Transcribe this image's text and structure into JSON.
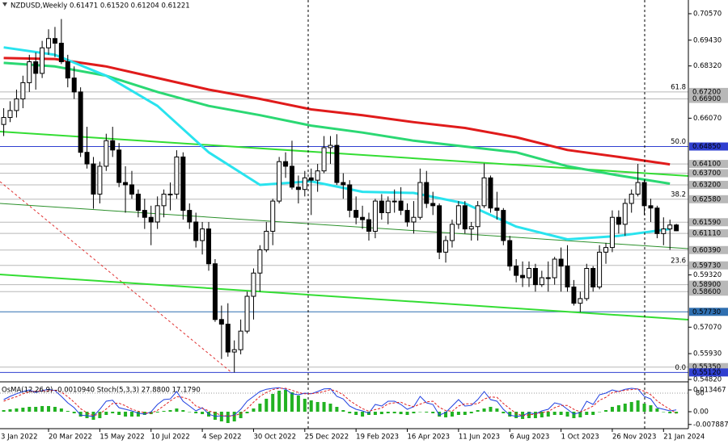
{
  "chart_data": {
    "type": "candlestick",
    "title": "NZDUSD,Weekly  0.61471 0.61520 0.61204 0.61221",
    "xlim": [
      3.42,
      110.75
    ],
    "ylim": [
      0.5475,
      0.7116
    ],
    "xticks": [
      {
        "value": 0,
        "label": "3 Jan 2022"
      },
      {
        "value": 11,
        "label": "20 Mar 2022"
      },
      {
        "value": 19,
        "label": "15 May 2022"
      },
      {
        "value": 27,
        "label": "10 Jul 2022"
      },
      {
        "value": 35,
        "label": "4 Sep 2022"
      },
      {
        "value": 43,
        "label": "30 Oct 2022"
      },
      {
        "value": 51,
        "label": "25 Dec 2022"
      },
      {
        "value": 59,
        "label": "19 Feb 2023"
      },
      {
        "value": 67,
        "label": "16 Apr 2023"
      },
      {
        "value": 75,
        "label": "11 Jun 2023"
      },
      {
        "value": 83,
        "label": "6 Aug 2023"
      },
      {
        "value": 91,
        "label": "1 Oct 2023"
      },
      {
        "value": 99,
        "label": "26 Nov 2023"
      },
      {
        "value": 107,
        "label": "21 Jan 2024"
      }
    ],
    "yticks": [
      {
        "value": 0.7057,
        "label": "0.70570"
      },
      {
        "value": 0.6943,
        "label": "0.69430"
      },
      {
        "value": 0.6832,
        "label": "0.68320"
      },
      {
        "value": 0.6607,
        "label": "0.66070"
      },
      {
        "value": 0.5932,
        "label": "0.59320"
      },
      {
        "value": 0.5707,
        "label": "0.57070"
      },
      {
        "value": 0.5593,
        "label": "0.55930"
      },
      {
        "value": 0.5482,
        "label": "0.54820"
      }
    ],
    "levels": [
      {
        "value": 0.672,
        "label": "0.67200",
        "color": "#b8b8b8"
      },
      {
        "value": 0.669,
        "label": "0.66900",
        "color": "#b8b8b8"
      },
      {
        "value": 0.6485,
        "label": "0.64850",
        "color": "#2f3fd0"
      },
      {
        "value": 0.641,
        "label": "0.64100",
        "color": "#b8b8b8"
      },
      {
        "value": 0.637,
        "label": "0.63700",
        "color": "#b8b8b8"
      },
      {
        "value": 0.632,
        "label": "0.63200",
        "color": "#b8b8b8"
      },
      {
        "value": 0.6258,
        "label": "0.62580",
        "color": "#b8b8b8"
      },
      {
        "value": 0.6159,
        "label": "0.61590",
        "color": "#b8b8b8"
      },
      {
        "value": 0.6111,
        "label": "0.61110",
        "color": "#b8b8b8"
      },
      {
        "value": 0.6039,
        "label": "0.60390",
        "color": "#b8b8b8"
      },
      {
        "value": 0.5973,
        "label": "0.59730",
        "color": "#b8b8b8"
      },
      {
        "value": 0.589,
        "label": "0.58900",
        "color": "#b8b8b8"
      },
      {
        "value": 0.586,
        "label": "0.58600",
        "color": "#b8b8b8"
      },
      {
        "value": 0.5773,
        "label": "0.57730",
        "color": "#2f6fb0"
      },
      {
        "value": 0.5535,
        "label": "0.55350",
        "color": "#b8b8b8"
      },
      {
        "value": 0.5512,
        "label": "0.55120",
        "color": "#2f3fd0"
      }
    ],
    "fib_labels": [
      {
        "text": "61.8",
        "price": 0.672
      },
      {
        "text": "50.0",
        "price": 0.6485
      },
      {
        "text": "38.2",
        "price": 0.6258
      },
      {
        "text": "23.6",
        "price": 0.5973
      },
      {
        "text": "0.0",
        "price": 0.5512
      }
    ],
    "x": [
      4,
      5,
      6,
      7,
      8,
      9,
      10,
      11,
      12,
      13,
      14,
      15,
      16,
      17,
      18,
      19,
      20,
      21,
      22,
      23,
      24,
      25,
      26,
      27,
      28,
      29,
      30,
      31,
      32,
      33,
      34,
      35,
      36,
      37,
      38,
      39,
      40,
      41,
      42,
      43,
      44,
      45,
      46,
      47,
      48,
      49,
      50,
      51,
      52,
      53,
      54,
      55,
      56,
      57,
      58,
      59,
      60,
      61,
      62,
      63,
      64,
      65,
      66,
      67,
      68,
      69,
      70,
      71,
      72,
      73,
      74,
      75,
      76,
      77,
      78,
      79,
      80,
      81,
      82,
      83,
      84,
      85,
      86,
      87,
      88,
      89,
      90,
      91,
      92,
      93,
      94,
      95,
      96,
      97,
      98,
      99,
      100,
      101,
      102,
      103,
      104,
      105,
      106,
      107,
      108,
      109
    ],
    "open": [
      0.658,
      0.661,
      0.664,
      0.669,
      0.676,
      0.685,
      0.68,
      0.691,
      0.695,
      0.693,
      0.685,
      0.678,
      0.672,
      0.646,
      0.641,
      0.628,
      0.64,
      0.651,
      0.647,
      0.633,
      0.632,
      0.628,
      0.621,
      0.618,
      0.616,
      0.623,
      0.628,
      0.628,
      0.644,
      0.621,
      0.616,
      0.608,
      0.613,
      0.598,
      0.574,
      0.572,
      0.56,
      0.561,
      0.569,
      0.584,
      0.594,
      0.604,
      0.612,
      0.625,
      0.642,
      0.64,
      0.631,
      0.63,
      0.635,
      0.634,
      0.638,
      0.648,
      0.649,
      0.633,
      0.632,
      0.621,
      0.618,
      0.617,
      0.612,
      0.625,
      0.62,
      0.625,
      0.625,
      0.621,
      0.616,
      0.618,
      0.633,
      0.624,
      0.623,
      0.603,
      0.608,
      0.615,
      0.623,
      0.613,
      0.614,
      0.623,
      0.635,
      0.622,
      0.621,
      0.608,
      0.597,
      0.593,
      0.592,
      0.596,
      0.589,
      0.592,
      0.592,
      0.6,
      0.597,
      0.588,
      0.581,
      0.583,
      0.596,
      0.588,
      0.603,
      0.605,
      0.618,
      0.615,
      0.624,
      0.628,
      0.633,
      0.623,
      0.622,
      0.611,
      0.613,
      0.61471
    ],
    "high": [
      0.665,
      0.668,
      0.673,
      0.679,
      0.688,
      0.689,
      0.694,
      0.699,
      0.7,
      0.7034,
      0.688,
      0.683,
      0.674,
      0.657,
      0.644,
      0.642,
      0.654,
      0.657,
      0.65,
      0.64,
      0.638,
      0.63,
      0.626,
      0.623,
      0.627,
      0.63,
      0.633,
      0.6469,
      0.646,
      0.624,
      0.62,
      0.616,
      0.616,
      0.6,
      0.58,
      0.581,
      0.565,
      0.574,
      0.586,
      0.596,
      0.606,
      0.616,
      0.626,
      0.644,
      0.646,
      0.651,
      0.636,
      0.638,
      0.639,
      0.641,
      0.653,
      0.653,
      0.6538,
      0.637,
      0.634,
      0.627,
      0.623,
      0.62,
      0.626,
      0.628,
      0.627,
      0.63,
      0.631,
      0.624,
      0.625,
      0.639,
      0.638,
      0.629,
      0.624,
      0.61,
      0.617,
      0.625,
      0.625,
      0.616,
      0.625,
      0.6412,
      0.636,
      0.629,
      0.622,
      0.61,
      0.6,
      0.599,
      0.599,
      0.598,
      0.595,
      0.599,
      0.601,
      0.605,
      0.606,
      0.591,
      0.586,
      0.598,
      0.597,
      0.606,
      0.607,
      0.621,
      0.621,
      0.626,
      0.63,
      0.641,
      0.634,
      0.626,
      0.623,
      0.618,
      0.617,
      0.6152
    ],
    "low": [
      0.653,
      0.659,
      0.661,
      0.665,
      0.672,
      0.673,
      0.678,
      0.688,
      0.687,
      0.684,
      0.674,
      0.669,
      0.644,
      0.639,
      0.6217,
      0.624,
      0.638,
      0.644,
      0.631,
      0.62,
      0.626,
      0.618,
      0.613,
      0.606,
      0.613,
      0.618,
      0.621,
      0.626,
      0.617,
      0.613,
      0.605,
      0.602,
      0.595,
      0.573,
      0.557,
      0.558,
      0.5512,
      0.559,
      0.568,
      0.574,
      0.586,
      0.603,
      0.606,
      0.624,
      0.635,
      0.63,
      0.624,
      0.627,
      0.619,
      0.629,
      0.637,
      0.641,
      0.632,
      0.626,
      0.618,
      0.615,
      0.613,
      0.608,
      0.609,
      0.617,
      0.615,
      0.62,
      0.619,
      0.614,
      0.611,
      0.617,
      0.622,
      0.619,
      0.6,
      0.5985,
      0.605,
      0.613,
      0.611,
      0.608,
      0.608,
      0.622,
      0.62,
      0.617,
      0.606,
      0.595,
      0.59,
      0.588,
      0.588,
      0.586,
      0.588,
      0.586,
      0.589,
      0.586,
      0.586,
      0.58,
      0.5772,
      0.582,
      0.586,
      0.587,
      0.598,
      0.603,
      0.611,
      0.61,
      0.62,
      0.627,
      0.619,
      0.616,
      0.609,
      0.606,
      0.604,
      0.61204
    ],
    "close": [
      0.661,
      0.664,
      0.669,
      0.676,
      0.685,
      0.68,
      0.691,
      0.695,
      0.693,
      0.685,
      0.678,
      0.672,
      0.646,
      0.641,
      0.628,
      0.64,
      0.651,
      0.647,
      0.633,
      0.632,
      0.628,
      0.621,
      0.618,
      0.616,
      0.623,
      0.628,
      0.628,
      0.644,
      0.621,
      0.616,
      0.608,
      0.613,
      0.598,
      0.574,
      0.572,
      0.56,
      0.561,
      0.569,
      0.584,
      0.594,
      0.604,
      0.612,
      0.625,
      0.642,
      0.64,
      0.631,
      0.63,
      0.635,
      0.634,
      0.638,
      0.648,
      0.649,
      0.633,
      0.632,
      0.621,
      0.618,
      0.617,
      0.612,
      0.625,
      0.62,
      0.625,
      0.625,
      0.621,
      0.616,
      0.618,
      0.633,
      0.624,
      0.623,
      0.603,
      0.608,
      0.615,
      0.623,
      0.613,
      0.614,
      0.623,
      0.635,
      0.622,
      0.621,
      0.608,
      0.597,
      0.593,
      0.592,
      0.596,
      0.589,
      0.592,
      0.592,
      0.6,
      0.597,
      0.588,
      0.581,
      0.583,
      0.596,
      0.588,
      0.603,
      0.605,
      0.618,
      0.615,
      0.624,
      0.628,
      0.633,
      0.623,
      0.622,
      0.611,
      0.613,
      0.6147,
      0.61221
    ],
    "ma_x": [
      4,
      12,
      20,
      28,
      36,
      44,
      52,
      60,
      68,
      76,
      84,
      92,
      100,
      108
    ],
    "moving_averages": [
      {
        "color": "#e01b1b",
        "values": [
          0.6866,
          0.6862,
          0.683,
          0.678,
          0.673,
          0.669,
          0.6645,
          0.662,
          0.659,
          0.6565,
          0.6525,
          0.647,
          0.644,
          0.6408
        ]
      },
      {
        "color": "#2bd873",
        "values": [
          0.6845,
          0.683,
          0.679,
          0.672,
          0.666,
          0.662,
          0.6575,
          0.6545,
          0.651,
          0.6485,
          0.646,
          0.64,
          0.636,
          0.6325
        ]
      },
      {
        "color": "#29e3ee",
        "values": [
          0.6912,
          0.688,
          0.679,
          0.666,
          0.646,
          0.632,
          0.6335,
          0.629,
          0.6285,
          0.624,
          0.614,
          0.6085,
          0.61,
          0.613
        ]
      }
    ],
    "indicator": {
      "label": "OsMA(12,26,9) -0.0010940  Stoch(5,3,3) 27.8800 17.1790",
      "osma_color": "#22b222",
      "osma_lim": [
        -0.00998,
        0.01746
      ],
      "osma_ticks": [
        {
          "value": 0.013467,
          "label": "0.013467"
        },
        {
          "value": 0,
          "label": "0.00"
        },
        {
          "value": -0.007887,
          "label": "-0.007887"
        }
      ],
      "osma": [
        0.001,
        0.0015,
        0.002,
        0.0025,
        0.003,
        0.003,
        0.0035,
        0.0035,
        0.003,
        0.002,
        0.0005,
        -0.001,
        -0.003,
        -0.004,
        -0.005,
        -0.004,
        -0.002,
        -0.001,
        -0.002,
        -0.003,
        -0.003,
        -0.003,
        -0.002,
        -0.0015,
        -0.0005,
        0.0005,
        0.001,
        0.002,
        0.001,
        0,
        -0.001,
        -0.0015,
        -0.003,
        -0.005,
        -0.006,
        -0.007,
        -0.006,
        -0.004,
        -0.001,
        0.002,
        0.005,
        0.008,
        0.011,
        0.013,
        0.0135,
        0.012,
        0.01,
        0.008,
        0.007,
        0.006,
        0.006,
        0.005,
        0.003,
        0.001,
        -0.001,
        -0.002,
        -0.003,
        -0.002,
        -0.002,
        -0.0015,
        -0.001,
        -0.001,
        -0.0015,
        -0.002,
        -0.001,
        0,
        -0.0005,
        -0.001,
        -0.003,
        -0.0035,
        -0.003,
        -0.002,
        -0.002,
        -0.001,
        0.001,
        0.002,
        0.003,
        0.002,
        -0.001,
        -0.003,
        -0.004,
        -0.0045,
        -0.004,
        -0.004,
        -0.0035,
        -0.003,
        -0.002,
        -0.002,
        -0.003,
        -0.004,
        -0.0035,
        -0.002,
        -0.002,
        0,
        0.001,
        0.003,
        0.004,
        0.005,
        0.006,
        0.007,
        0.005,
        0.004,
        0.002,
        0,
        -0.001,
        -0.001094
      ],
      "stoch_lim": [
        0,
        100
      ],
      "stoch_ticks": [
        80
      ],
      "stoch_main_color": "#1f3fe0",
      "stoch_signal_color": "#e02020",
      "stoch_main": [
        60,
        70,
        78,
        85,
        90,
        82,
        88,
        92,
        88,
        70,
        50,
        35,
        12,
        10,
        8,
        30,
        55,
        58,
        35,
        30,
        25,
        18,
        15,
        22,
        45,
        60,
        62,
        85,
        55,
        40,
        25,
        35,
        15,
        8,
        10,
        8,
        12,
        30,
        55,
        70,
        85,
        92,
        95,
        97,
        92,
        78,
        75,
        80,
        78,
        85,
        93,
        94,
        70,
        62,
        40,
        30,
        25,
        18,
        45,
        40,
        55,
        55,
        45,
        30,
        38,
        70,
        50,
        45,
        12,
        20,
        40,
        60,
        40,
        42,
        60,
        85,
        60,
        55,
        30,
        12,
        8,
        10,
        20,
        15,
        25,
        30,
        50,
        45,
        30,
        15,
        20,
        55,
        45,
        75,
        80,
        90,
        85,
        92,
        95,
        93,
        70,
        62,
        35,
        30,
        25,
        27.88
      ],
      "stoch_signal": [
        55,
        63,
        69,
        78,
        84,
        86,
        87,
        87,
        89,
        83,
        69,
        52,
        32,
        19,
        10,
        16,
        31,
        48,
        49,
        41,
        30,
        24,
        19,
        18,
        27,
        41,
        56,
        69,
        67,
        60,
        40,
        33,
        25,
        19,
        11,
        9,
        10,
        17,
        32,
        52,
        70,
        82,
        91,
        95,
        95,
        89,
        82,
        78,
        78,
        81,
        85,
        91,
        86,
        75,
        57,
        44,
        32,
        24,
        29,
        34,
        47,
        50,
        52,
        43,
        38,
        46,
        53,
        55,
        36,
        26,
        24,
        40,
        47,
        47,
        47,
        62,
        68,
        67,
        48,
        32,
        17,
        10,
        13,
        15,
        20,
        23,
        35,
        42,
        42,
        30,
        22,
        30,
        40,
        58,
        67,
        82,
        85,
        89,
        91,
        93,
        86,
        75,
        56,
        42,
        30,
        17.179
      ]
    }
  }
}
